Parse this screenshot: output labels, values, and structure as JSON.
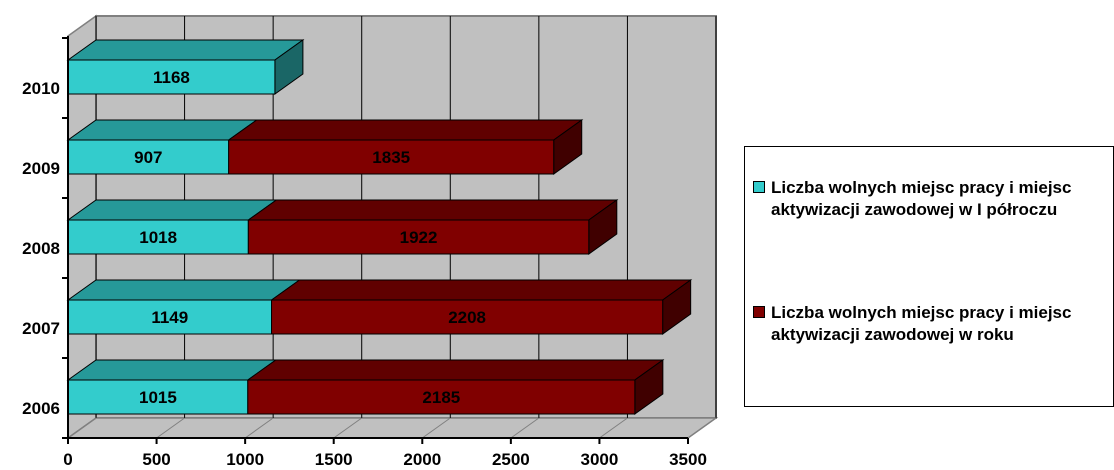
{
  "chart_data": {
    "type": "bar",
    "orientation": "horizontal",
    "stacked": true,
    "three_d": true,
    "categories": [
      "2006",
      "2007",
      "2008",
      "2009",
      "2010"
    ],
    "series": [
      {
        "name": "Liczba wolnych miejsc pracy i miejsc aktywizacji zawodowej w I półroczu",
        "values": [
          1015,
          1149,
          1018,
          907,
          1168
        ],
        "color": "#33cccc"
      },
      {
        "name": "Liczba wolnych miejsc pracy i miejsc aktywizacji zawodowej w roku",
        "values": [
          2185,
          2208,
          1922,
          1835,
          null
        ],
        "color": "#800000"
      }
    ],
    "xlim": [
      0,
      3500
    ],
    "xticks": [
      "0",
      "500",
      "1000",
      "1500",
      "2000",
      "2500",
      "3000",
      "3500"
    ],
    "grid": true,
    "legend": "right",
    "wall_color": "#c0c0c0"
  }
}
